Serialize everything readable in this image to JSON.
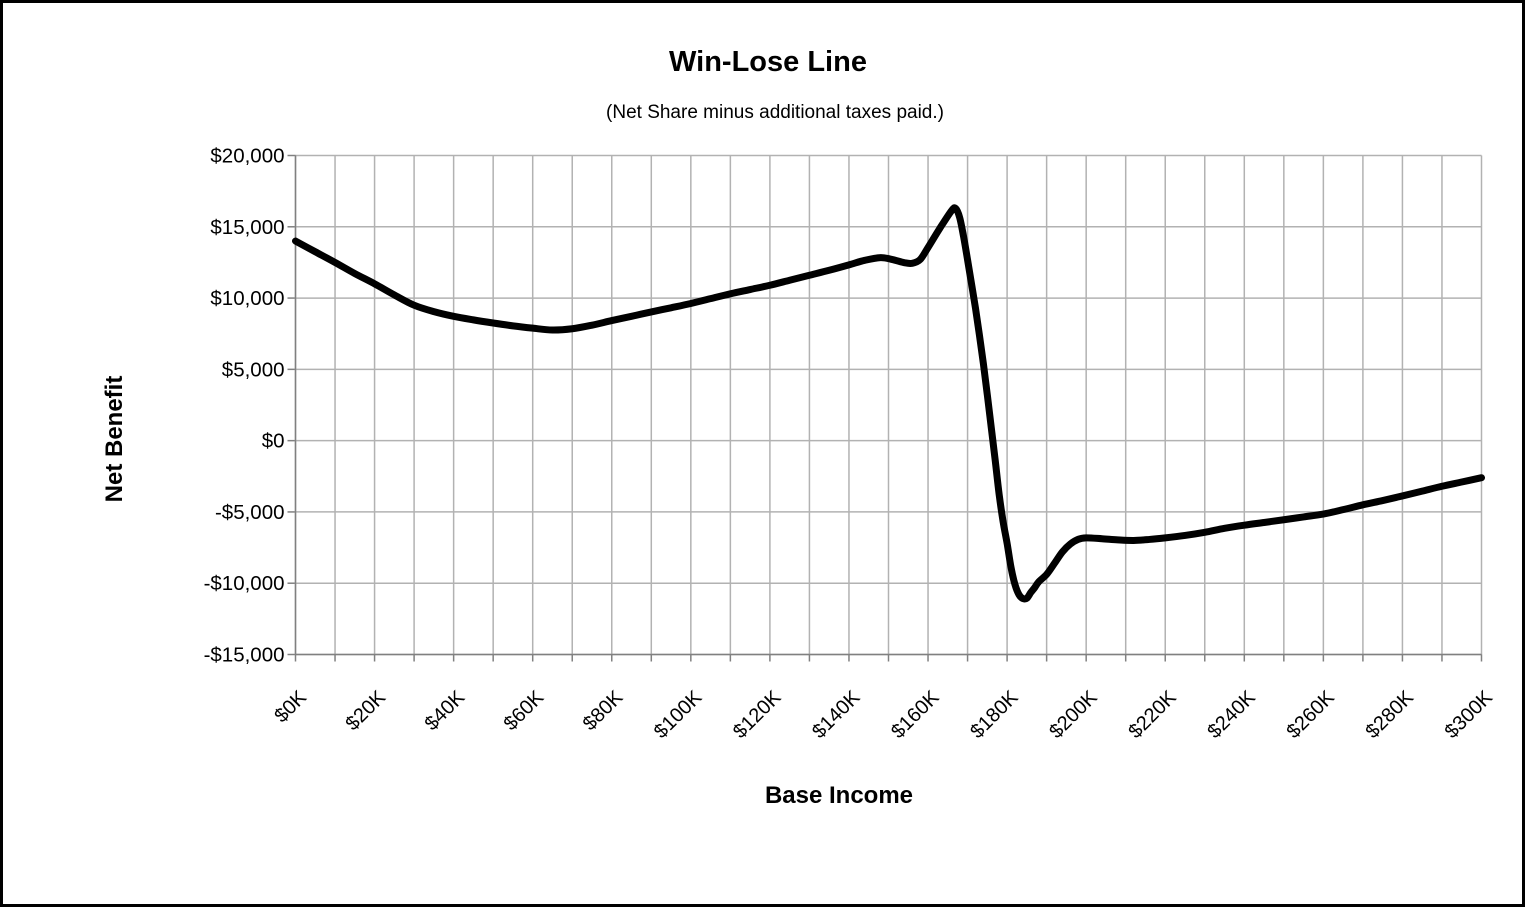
{
  "header": {
    "title": "Win-Lose Line",
    "subtitle": "(Net Share minus additional taxes paid.)"
  },
  "chart_data": {
    "type": "line",
    "title": "Win-Lose Line",
    "subtitle": "(Net Share minus additional taxes paid.)",
    "xlabel": "Base Income",
    "ylabel": "Net Benefit",
    "x_unit": "thousands of dollars",
    "y_unit": "dollars",
    "xlim_thousands": [
      0,
      300
    ],
    "ylim": [
      -15000,
      20000
    ],
    "x_major_tick_step_thousands": 20,
    "x_gridline_step_thousands": 10,
    "y_tick_step": 5000,
    "grid": true,
    "legend_position": "none",
    "x_tick_labels": [
      "$0K",
      "$20K",
      "$40K",
      "$60K",
      "$80K",
      "$100K",
      "$120K",
      "$140K",
      "$160K",
      "$180K",
      "$200K",
      "$220K",
      "$240K",
      "$260K",
      "$280K",
      "$300K"
    ],
    "y_tick_labels": [
      "$20,000",
      "$15,000",
      "$10,000",
      "$5,000",
      "$0",
      "-$5,000",
      "-$10,000",
      "-$15,000"
    ],
    "y_tick_values": [
      20000,
      15000,
      10000,
      5000,
      0,
      -5000,
      -10000,
      -15000
    ],
    "line_color": "#000000",
    "gridline_color": "#b2b2b2",
    "axis_color": "#808080",
    "series": [
      {
        "name": "Net Benefit",
        "points_x_thousands_y_dollars": [
          [
            0,
            14000
          ],
          [
            5,
            13250
          ],
          [
            10,
            12500
          ],
          [
            15,
            11720
          ],
          [
            20,
            11000
          ],
          [
            25,
            10220
          ],
          [
            30,
            9500
          ],
          [
            35,
            9050
          ],
          [
            40,
            8720
          ],
          [
            45,
            8470
          ],
          [
            50,
            8250
          ],
          [
            55,
            8050
          ],
          [
            60,
            7890
          ],
          [
            65,
            7760
          ],
          [
            70,
            7850
          ],
          [
            75,
            8100
          ],
          [
            80,
            8420
          ],
          [
            85,
            8720
          ],
          [
            90,
            9030
          ],
          [
            95,
            9320
          ],
          [
            100,
            9620
          ],
          [
            105,
            9960
          ],
          [
            110,
            10300
          ],
          [
            115,
            10600
          ],
          [
            120,
            10900
          ],
          [
            125,
            11250
          ],
          [
            130,
            11600
          ],
          [
            135,
            11950
          ],
          [
            140,
            12330
          ],
          [
            144,
            12650
          ],
          [
            148,
            12840
          ],
          [
            151,
            12700
          ],
          [
            154,
            12480
          ],
          [
            156,
            12440
          ],
          [
            158,
            12700
          ],
          [
            160,
            13550
          ],
          [
            163,
            14900
          ],
          [
            166,
            16150
          ],
          [
            167,
            16280
          ],
          [
            168,
            15650
          ],
          [
            169,
            14300
          ],
          [
            170,
            12680
          ],
          [
            171,
            11000
          ],
          [
            172,
            9300
          ],
          [
            173,
            7400
          ],
          [
            174,
            5400
          ],
          [
            175,
            3200
          ],
          [
            176,
            900
          ],
          [
            177,
            -1400
          ],
          [
            178,
            -3800
          ],
          [
            179,
            -5700
          ],
          [
            180,
            -7200
          ],
          [
            181,
            -8900
          ],
          [
            182,
            -10100
          ],
          [
            183,
            -10800
          ],
          [
            184,
            -11080
          ],
          [
            185,
            -11050
          ],
          [
            186,
            -10650
          ],
          [
            187,
            -10300
          ],
          [
            188,
            -9900
          ],
          [
            190,
            -9380
          ],
          [
            192,
            -8600
          ],
          [
            194,
            -7800
          ],
          [
            196,
            -7250
          ],
          [
            198,
            -6920
          ],
          [
            200,
            -6820
          ],
          [
            204,
            -6880
          ],
          [
            208,
            -6960
          ],
          [
            212,
            -7000
          ],
          [
            216,
            -6930
          ],
          [
            220,
            -6820
          ],
          [
            225,
            -6650
          ],
          [
            230,
            -6430
          ],
          [
            235,
            -6150
          ],
          [
            240,
            -5930
          ],
          [
            245,
            -5740
          ],
          [
            250,
            -5550
          ],
          [
            255,
            -5350
          ],
          [
            260,
            -5150
          ],
          [
            265,
            -4840
          ],
          [
            270,
            -4500
          ],
          [
            275,
            -4200
          ],
          [
            280,
            -3880
          ],
          [
            285,
            -3540
          ],
          [
            290,
            -3200
          ],
          [
            295,
            -2900
          ],
          [
            300,
            -2600
          ]
        ]
      }
    ]
  }
}
